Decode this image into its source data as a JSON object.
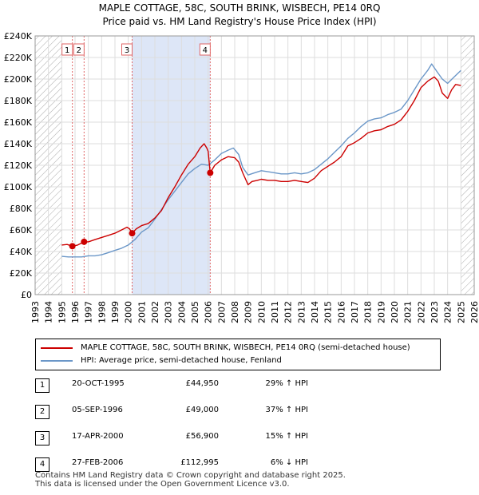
{
  "title_line1": "MAPLE COTTAGE, 58C, SOUTH BRINK, WISBECH, PE14 0RQ",
  "title_line2": "Price paid vs. HM Land Registry's House Price Index (HPI)",
  "legend": {
    "property_label": "MAPLE COTTAGE, 58C, SOUTH BRINK, WISBECH, PE14 0RQ (semi-detached house)",
    "hpi_label": "HPI: Average price, semi-detached house, Fenland"
  },
  "transactions": [
    {
      "num": "1",
      "date": "20-OCT-1995",
      "price": "£44,950",
      "hpi": "29% ↑ HPI"
    },
    {
      "num": "2",
      "date": "05-SEP-1996",
      "price": "£49,000",
      "hpi": "37% ↑ HPI"
    },
    {
      "num": "3",
      "date": "17-APR-2000",
      "price": "£56,900",
      "hpi": "15% ↑ HPI"
    },
    {
      "num": "4",
      "date": "27-FEB-2006",
      "price": "£112,995",
      "hpi": "6% ↓ HPI"
    }
  ],
  "footer": {
    "line1": "Contains HM Land Registry data © Crown copyright and database right 2025.",
    "line2": "This data is licensed under the Open Government Licence v3.0."
  },
  "chart_data": {
    "type": "line",
    "title": "MAPLE COTTAGE, 58C, SOUTH BRINK, WISBECH, PE14 0RQ — Price paid vs. HM Land Registry's House Price Index (HPI)",
    "xlabel": "",
    "ylabel": "",
    "xlim": [
      1993,
      2026
    ],
    "ylim": [
      0,
      240000
    ],
    "x_ticks": [
      1993,
      1994,
      1995,
      1996,
      1997,
      1998,
      1999,
      2000,
      2001,
      2002,
      2003,
      2004,
      2005,
      2006,
      2007,
      2008,
      2009,
      2010,
      2011,
      2012,
      2013,
      2014,
      2015,
      2016,
      2017,
      2018,
      2019,
      2020,
      2021,
      2022,
      2023,
      2024,
      2025,
      2026
    ],
    "y_ticks": [
      0,
      20000,
      40000,
      60000,
      80000,
      100000,
      120000,
      140000,
      160000,
      180000,
      200000,
      220000,
      240000
    ],
    "y_tick_labels": [
      "£0",
      "£20K",
      "£40K",
      "£60K",
      "£80K",
      "£100K",
      "£120K",
      "£140K",
      "£160K",
      "£180K",
      "£200K",
      "£220K",
      "£240K"
    ],
    "grid": true,
    "hatched_ranges": [
      [
        1993,
        1995.0
      ],
      [
        2025.0,
        2026
      ]
    ],
    "shaded_range": [
      2000.29,
      2006.16
    ],
    "colors": {
      "property": "#cc0000",
      "hpi": "#6b97c8",
      "shade": "#dde6f7",
      "marker_line": "#e06666"
    },
    "series": [
      {
        "name": "MAPLE COTTAGE, 58C, SOUTH BRINK, WISBECH, PE14 0RQ (semi-detached house)",
        "points": [
          [
            1995.0,
            46000
          ],
          [
            1995.4,
            46500
          ],
          [
            1995.8,
            44950
          ],
          [
            1996.2,
            46000
          ],
          [
            1996.68,
            49000
          ],
          [
            1997,
            49000
          ],
          [
            1997.5,
            51000
          ],
          [
            1998,
            53000
          ],
          [
            1998.5,
            55000
          ],
          [
            1999,
            57000
          ],
          [
            1999.5,
            60000
          ],
          [
            1999.9,
            62500
          ],
          [
            2000.1,
            61000
          ],
          [
            2000.29,
            56900
          ],
          [
            2000.6,
            61000
          ],
          [
            2001,
            64000
          ],
          [
            2001.5,
            66000
          ],
          [
            2002,
            71000
          ],
          [
            2002.5,
            78000
          ],
          [
            2003,
            90000
          ],
          [
            2003.5,
            100000
          ],
          [
            2004,
            111000
          ],
          [
            2004.5,
            121000
          ],
          [
            2005,
            128000
          ],
          [
            2005.4,
            136000
          ],
          [
            2005.7,
            140000
          ],
          [
            2005.9,
            136000
          ],
          [
            2006.0,
            133000
          ],
          [
            2006.16,
            112995
          ],
          [
            2006.5,
            120000
          ],
          [
            2007,
            125000
          ],
          [
            2007.5,
            128000
          ],
          [
            2008,
            127000
          ],
          [
            2008.3,
            123000
          ],
          [
            2008.6,
            113000
          ],
          [
            2009,
            102000
          ],
          [
            2009.3,
            105000
          ],
          [
            2009.7,
            106000
          ],
          [
            2010,
            107000
          ],
          [
            2010.5,
            106000
          ],
          [
            2011,
            106000
          ],
          [
            2011.5,
            105000
          ],
          [
            2012,
            105000
          ],
          [
            2012.5,
            106000
          ],
          [
            2013,
            105000
          ],
          [
            2013.5,
            104000
          ],
          [
            2014,
            108000
          ],
          [
            2014.5,
            115000
          ],
          [
            2015,
            119000
          ],
          [
            2015.5,
            123000
          ],
          [
            2016,
            128000
          ],
          [
            2016.5,
            138000
          ],
          [
            2017,
            141000
          ],
          [
            2017.5,
            145000
          ],
          [
            2018,
            150000
          ],
          [
            2018.5,
            152000
          ],
          [
            2019,
            153000
          ],
          [
            2019.5,
            156000
          ],
          [
            2020,
            158000
          ],
          [
            2020.5,
            162000
          ],
          [
            2021,
            170000
          ],
          [
            2021.5,
            180000
          ],
          [
            2022,
            192000
          ],
          [
            2022.5,
            198000
          ],
          [
            2023,
            202000
          ],
          [
            2023.3,
            198000
          ],
          [
            2023.6,
            187000
          ],
          [
            2024,
            182000
          ],
          [
            2024.3,
            190000
          ],
          [
            2024.6,
            195000
          ],
          [
            2025.0,
            194000
          ]
        ]
      },
      {
        "name": "HPI: Average price, semi-detached house, Fenland",
        "points": [
          [
            1995.0,
            35500
          ],
          [
            1995.5,
            35000
          ],
          [
            1996,
            35000
          ],
          [
            1996.5,
            35000
          ],
          [
            1997,
            36000
          ],
          [
            1997.5,
            36000
          ],
          [
            1998,
            37000
          ],
          [
            1998.5,
            39000
          ],
          [
            1999,
            41000
          ],
          [
            1999.5,
            43000
          ],
          [
            2000,
            46000
          ],
          [
            2000.5,
            51000
          ],
          [
            2001,
            58000
          ],
          [
            2001.5,
            62000
          ],
          [
            2002,
            70000
          ],
          [
            2002.5,
            79000
          ],
          [
            2003,
            88000
          ],
          [
            2003.5,
            96000
          ],
          [
            2004,
            104000
          ],
          [
            2004.5,
            112000
          ],
          [
            2005,
            117000
          ],
          [
            2005.5,
            121000
          ],
          [
            2006,
            120000
          ],
          [
            2006.5,
            125000
          ],
          [
            2007,
            131000
          ],
          [
            2007.5,
            134000
          ],
          [
            2007.9,
            136000
          ],
          [
            2008.3,
            130000
          ],
          [
            2008.6,
            118000
          ],
          [
            2009,
            111000
          ],
          [
            2009.5,
            113000
          ],
          [
            2010,
            115000
          ],
          [
            2010.5,
            114000
          ],
          [
            2011,
            113000
          ],
          [
            2011.5,
            112000
          ],
          [
            2012,
            112000
          ],
          [
            2012.5,
            113000
          ],
          [
            2013,
            112000
          ],
          [
            2013.5,
            113000
          ],
          [
            2014,
            116000
          ],
          [
            2014.5,
            121000
          ],
          [
            2015,
            126000
          ],
          [
            2015.5,
            132000
          ],
          [
            2016,
            138000
          ],
          [
            2016.5,
            145000
          ],
          [
            2017,
            150000
          ],
          [
            2017.5,
            156000
          ],
          [
            2018,
            161000
          ],
          [
            2018.5,
            163000
          ],
          [
            2019,
            164000
          ],
          [
            2019.5,
            167000
          ],
          [
            2020,
            169000
          ],
          [
            2020.5,
            172000
          ],
          [
            2021,
            180000
          ],
          [
            2021.5,
            190000
          ],
          [
            2022,
            200000
          ],
          [
            2022.5,
            208000
          ],
          [
            2022.8,
            214000
          ],
          [
            2023.2,
            207000
          ],
          [
            2023.6,
            200000
          ],
          [
            2024,
            196000
          ],
          [
            2024.5,
            202000
          ],
          [
            2025.0,
            208000
          ]
        ]
      }
    ],
    "sales": [
      {
        "label": "1",
        "x": 1995.8,
        "y": 44950
      },
      {
        "label": "2",
        "x": 1996.68,
        "y": 49000
      },
      {
        "label": "3",
        "x": 2000.29,
        "y": 56900
      },
      {
        "label": "4",
        "x": 2006.16,
        "y": 112995
      }
    ]
  }
}
